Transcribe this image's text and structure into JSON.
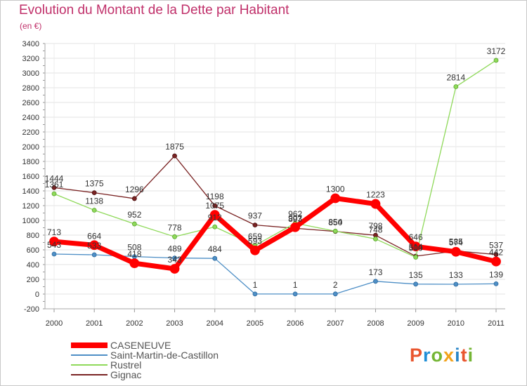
{
  "header": {
    "title": "Evolution du Montant de la Dette par Habitant",
    "subtitle": "(en €)"
  },
  "logo": {
    "text": "Proxiti",
    "colors": [
      "#e9562f",
      "#1f8ed6",
      "#74b534",
      "#f2a21b",
      "#2a86c8",
      "#e9562f",
      "#74b534"
    ]
  },
  "chart_data": {
    "type": "line",
    "title": "Evolution du Montant de la Dette par Habitant",
    "subtitle": "(en €)",
    "xlabel": "",
    "ylabel": "",
    "x": [
      "2000",
      "2001",
      "2002",
      "2003",
      "2004",
      "2005",
      "2006",
      "2007",
      "2008",
      "2009",
      "2010",
      "2011"
    ],
    "ylim": [
      -200,
      3400
    ],
    "yticks": [
      -200,
      0,
      200,
      400,
      600,
      800,
      1000,
      1200,
      1400,
      1600,
      1800,
      2000,
      2200,
      2400,
      2600,
      2800,
      3000,
      3200,
      3400
    ],
    "grid": true,
    "legend_position": "bottom-left",
    "series": [
      {
        "name": "CASENEUVE",
        "color": "#ff0000",
        "values": [
          713,
          664,
          418,
          343,
          1075,
          593,
          907,
          1300,
          1223,
          646,
          574,
          442
        ]
      },
      {
        "name": "Saint-Martin-de-Castillon",
        "color": "#4e8fc6",
        "values": [
          543,
          533,
          508,
          489,
          484,
          1,
          1,
          2,
          173,
          135,
          133,
          139
        ]
      },
      {
        "name": "Rustrel",
        "color": "#8fd95a",
        "values": [
          1361,
          1138,
          952,
          778,
          912,
          659,
          962,
          854,
          748,
          500,
          2814,
          3172
        ]
      },
      {
        "name": "Gignac",
        "color": "#7a2323",
        "values": [
          1444,
          1375,
          1296,
          1875,
          1198,
          937,
          893,
          850,
          798,
          514,
          585,
          537
        ]
      }
    ]
  }
}
